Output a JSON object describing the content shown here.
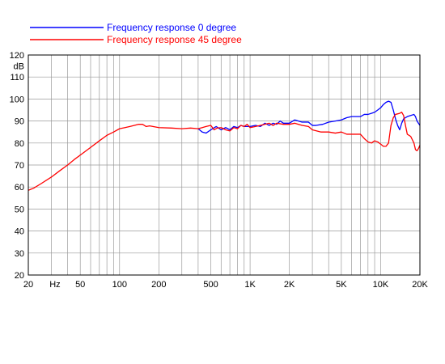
{
  "chart_data": {
    "type": "line",
    "xscale": "log",
    "xlim": [
      20,
      20000
    ],
    "ylim": [
      20,
      120
    ],
    "ylabel": "dB",
    "xlabel": "Hz",
    "grid": true,
    "legend_position": "top-left",
    "x_tick_labels": [
      {
        "value": 20,
        "label": "20"
      },
      {
        "value": 50,
        "label": "50"
      },
      {
        "value": 100,
        "label": "100"
      },
      {
        "value": 200,
        "label": "200"
      },
      {
        "value": 500,
        "label": "500"
      },
      {
        "value": 1000,
        "label": "1K"
      },
      {
        "value": 2000,
        "label": "2K"
      },
      {
        "value": 5000,
        "label": "5K"
      },
      {
        "value": 10000,
        "label": "10K"
      },
      {
        "value": 20000,
        "label": "20K"
      }
    ],
    "y_tick_labels": [
      {
        "value": 20,
        "label": "20"
      },
      {
        "value": 30,
        "label": "30"
      },
      {
        "value": 40,
        "label": "40"
      },
      {
        "value": 50,
        "label": "50"
      },
      {
        "value": 60,
        "label": "60"
      },
      {
        "value": 70,
        "label": "70"
      },
      {
        "value": 80,
        "label": "80"
      },
      {
        "value": 90,
        "label": "90"
      },
      {
        "value": 100,
        "label": "100"
      },
      {
        "value": 110,
        "label": "110"
      },
      {
        "value": 120,
        "label": "120"
      }
    ],
    "series": [
      {
        "name": "Frequency response 0 degree",
        "color": "#0000ff",
        "points": [
          [
            400,
            86.5
          ],
          [
            430,
            85
          ],
          [
            460,
            84.5
          ],
          [
            500,
            86
          ],
          [
            550,
            87.5
          ],
          [
            600,
            86
          ],
          [
            650,
            87
          ],
          [
            700,
            86
          ],
          [
            750,
            87.5
          ],
          [
            800,
            87
          ],
          [
            850,
            88
          ],
          [
            900,
            87.5
          ],
          [
            1000,
            87.5
          ],
          [
            1100,
            88
          ],
          [
            1200,
            87.5
          ],
          [
            1300,
            89
          ],
          [
            1400,
            88
          ],
          [
            1500,
            89
          ],
          [
            1600,
            88.5
          ],
          [
            1700,
            90
          ],
          [
            1800,
            89
          ],
          [
            2000,
            89
          ],
          [
            2200,
            90.5
          ],
          [
            2500,
            89.5
          ],
          [
            2800,
            89.5
          ],
          [
            3000,
            88
          ],
          [
            3200,
            88
          ],
          [
            3600,
            88.5
          ],
          [
            4000,
            89.5
          ],
          [
            4500,
            90
          ],
          [
            5000,
            90.5
          ],
          [
            5500,
            91.5
          ],
          [
            6000,
            92
          ],
          [
            6500,
            92
          ],
          [
            7000,
            92
          ],
          [
            7500,
            93
          ],
          [
            8000,
            93
          ],
          [
            8500,
            93.5
          ],
          [
            9000,
            94
          ],
          [
            9500,
            95
          ],
          [
            10000,
            96
          ],
          [
            10500,
            97.5
          ],
          [
            11000,
            98.5
          ],
          [
            11500,
            99
          ],
          [
            12000,
            98.5
          ],
          [
            12500,
            95
          ],
          [
            13000,
            91
          ],
          [
            13500,
            88
          ],
          [
            14000,
            86
          ],
          [
            14500,
            89
          ],
          [
            15000,
            91
          ],
          [
            16000,
            92
          ],
          [
            17000,
            92.5
          ],
          [
            18000,
            93
          ],
          [
            18500,
            92
          ],
          [
            19000,
            90
          ],
          [
            20000,
            88
          ]
        ]
      },
      {
        "name": "Frequency response 45 degree",
        "color": "#ff0000",
        "points": [
          [
            20,
            58.5
          ],
          [
            22,
            59.5
          ],
          [
            25,
            61.5
          ],
          [
            30,
            64.5
          ],
          [
            35,
            67.5
          ],
          [
            40,
            70
          ],
          [
            45,
            72.5
          ],
          [
            50,
            74.5
          ],
          [
            60,
            78
          ],
          [
            70,
            81
          ],
          [
            80,
            83.5
          ],
          [
            90,
            85
          ],
          [
            100,
            86.5
          ],
          [
            110,
            87
          ],
          [
            120,
            87.5
          ],
          [
            130,
            88
          ],
          [
            140,
            88.5
          ],
          [
            150,
            88.5
          ],
          [
            160,
            87.5
          ],
          [
            170,
            87.8
          ],
          [
            180,
            87.5
          ],
          [
            200,
            87
          ],
          [
            250,
            86.8
          ],
          [
            300,
            86.5
          ],
          [
            350,
            86.8
          ],
          [
            400,
            86.5
          ],
          [
            430,
            87
          ],
          [
            460,
            87.5
          ],
          [
            500,
            88
          ],
          [
            530,
            86
          ],
          [
            560,
            86.8
          ],
          [
            600,
            87
          ],
          [
            650,
            86
          ],
          [
            700,
            85.5
          ],
          [
            750,
            87
          ],
          [
            800,
            86.5
          ],
          [
            850,
            88
          ],
          [
            900,
            87.5
          ],
          [
            950,
            88.5
          ],
          [
            1000,
            87
          ],
          [
            1100,
            87.5
          ],
          [
            1200,
            88
          ],
          [
            1300,
            88.5
          ],
          [
            1400,
            89
          ],
          [
            1500,
            88
          ],
          [
            1600,
            89
          ],
          [
            1800,
            88.5
          ],
          [
            2000,
            88.5
          ],
          [
            2200,
            89
          ],
          [
            2500,
            88
          ],
          [
            2800,
            87.5
          ],
          [
            3000,
            86
          ],
          [
            3500,
            85
          ],
          [
            4000,
            85
          ],
          [
            4500,
            84.5
          ],
          [
            5000,
            85
          ],
          [
            5500,
            84
          ],
          [
            6000,
            84
          ],
          [
            7000,
            84
          ],
          [
            7500,
            82
          ],
          [
            8000,
            80.5
          ],
          [
            8500,
            80
          ],
          [
            9000,
            81
          ],
          [
            9500,
            80.5
          ],
          [
            10000,
            79.5
          ],
          [
            10500,
            78.5
          ],
          [
            11000,
            78.5
          ],
          [
            11500,
            80
          ],
          [
            12000,
            88
          ],
          [
            12500,
            91.5
          ],
          [
            13000,
            93
          ],
          [
            14000,
            93.5
          ],
          [
            14500,
            94
          ],
          [
            15000,
            92.5
          ],
          [
            15500,
            88
          ],
          [
            16000,
            84
          ],
          [
            17000,
            83
          ],
          [
            18000,
            80
          ],
          [
            18500,
            77
          ],
          [
            19000,
            76.5
          ],
          [
            19500,
            77.5
          ],
          [
            20000,
            79
          ]
        ]
      }
    ]
  }
}
